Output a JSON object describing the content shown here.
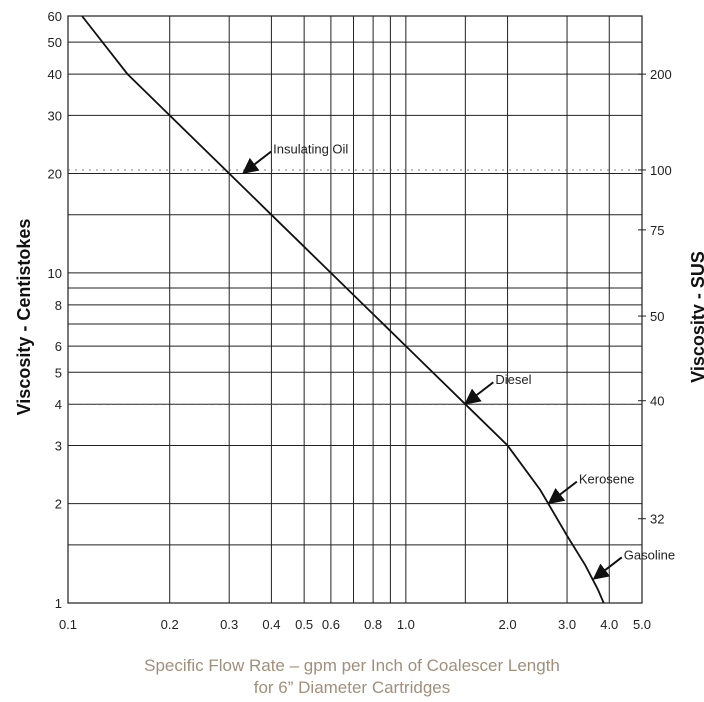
{
  "chart_data": {
    "type": "line",
    "x_scale": "log",
    "y_scale": "log",
    "xlim": [
      0.1,
      5.0
    ],
    "ylim": [
      1,
      60
    ],
    "grid": true,
    "ylabel": "Viscosity - Centistokes",
    "ylabel_right": "Viscosity - SUS",
    "xlabel_line1": "Specific Flow Rate – gpm per Inch of Coalescer Length",
    "xlabel_line2": "for 6” Diameter Cartridges",
    "x_ticks": [
      0.1,
      0.2,
      0.3,
      0.4,
      0.5,
      0.6,
      0.8,
      1.0,
      2.0,
      3.0,
      4.0,
      5.0
    ],
    "x_tick_labels": [
      "0.1",
      "0.2",
      "0.3",
      "0.4",
      "0.5",
      "0.6",
      "0.8",
      "1.0",
      "2.0",
      "3.0",
      "4.0",
      "5.0"
    ],
    "y_ticks": [
      1,
      2,
      3,
      4,
      5,
      6,
      8,
      10,
      20,
      30,
      40,
      50,
      60
    ],
    "y_tick_labels": [
      "1",
      "2",
      "3",
      "4",
      "5",
      "6",
      "8",
      "10",
      "20",
      "30",
      "40",
      "50",
      "60"
    ],
    "y_extra_gridlines": [
      1.5,
      7,
      9,
      15
    ],
    "x_extra_gridlines": [
      0.7,
      0.9,
      1.5
    ],
    "right_ticks": [
      {
        "label": "200",
        "cst": 40
      },
      {
        "label": "100",
        "cst": 20.5
      },
      {
        "label": "75",
        "cst": 13.5
      },
      {
        "label": "50",
        "cst": 7.4
      },
      {
        "label": "40",
        "cst": 4.1
      },
      {
        "label": "32",
        "cst": 1.8
      }
    ],
    "series": [
      {
        "x": [
          0.11,
          0.15,
          0.2,
          0.3,
          0.4,
          0.5,
          0.6,
          0.8,
          1.0,
          1.5,
          2.0,
          2.5,
          3.0,
          3.4,
          3.7,
          3.85
        ],
        "y": [
          60,
          40,
          30,
          20,
          15,
          12,
          10,
          7.5,
          6,
          4,
          3,
          2.2,
          1.6,
          1.3,
          1.1,
          1.0
        ]
      }
    ],
    "annotations": [
      {
        "text": "Insulating Oil",
        "x": 0.33,
        "y": 20
      },
      {
        "text": "Diesel",
        "x": 1.5,
        "y": 4
      },
      {
        "text": "Kerosene",
        "x": 2.65,
        "y": 2
      },
      {
        "text": "Gasoline",
        "x": 3.6,
        "y": 1.18
      }
    ]
  }
}
